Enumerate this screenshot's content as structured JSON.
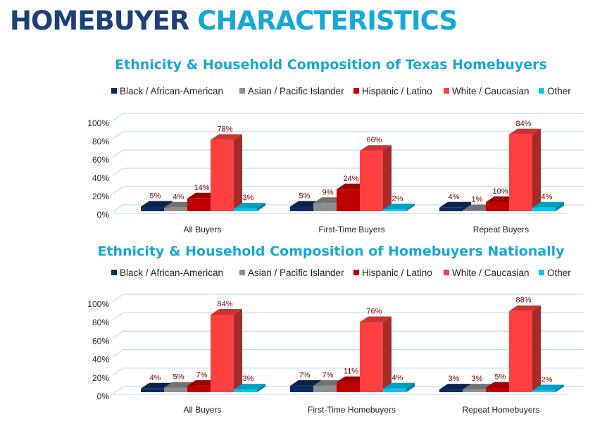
{
  "page_title": {
    "part1": "HOMEBUYER",
    "part2": "CHARACTERISTICS"
  },
  "colors": {
    "title_dark": "#1d3f7a",
    "title_accent": "#17a8d8"
  },
  "chart_data": [
    {
      "type": "bar",
      "title": "Ethnicity & Household Composition of Texas Homebuyers",
      "categories": [
        "All Buyers",
        "First-Time Buyers",
        "Repeat Buyers"
      ],
      "ylim": [
        0,
        100
      ],
      "yticks": [
        "0%",
        "20%",
        "40%",
        "60%",
        "80%",
        "100%"
      ],
      "grid": true,
      "legend": "top",
      "style": "3d-clustered-column",
      "series": [
        {
          "name": "Black / African-American",
          "color": "#0e2a5e",
          "values": [
            5,
            5,
            4
          ]
        },
        {
          "name": "Asian /  Pacific Islander",
          "color": "#8f8f8f",
          "values": [
            4,
            9,
            1
          ]
        },
        {
          "name": "Hispanic / Latino",
          "color": "#c00000",
          "values": [
            14,
            24,
            10
          ]
        },
        {
          "name": "White / Caucasian",
          "color": "#ff4040",
          "values": [
            78,
            66,
            84
          ]
        },
        {
          "name": "Other",
          "color": "#00c8f2",
          "values": [
            3,
            2,
            4
          ]
        }
      ]
    },
    {
      "type": "bar",
      "title": "Ethnicity & Household Composition of Homebuyers Nationally",
      "categories": [
        "All Buyers",
        "First-Time Homebuyers",
        "Repeat Homebuyers"
      ],
      "ylim": [
        0,
        100
      ],
      "yticks": [
        "0%",
        "20%",
        "40%",
        "60%",
        "80%",
        "100%"
      ],
      "grid": true,
      "legend": "top",
      "style": "3d-clustered-column",
      "series": [
        {
          "name": "Black / African-American",
          "color": "#0e2a5e",
          "values": [
            4,
            7,
            3
          ]
        },
        {
          "name": "Asian /  Pacific Islander",
          "color": "#8f8f8f",
          "values": [
            5,
            7,
            3
          ]
        },
        {
          "name": "Hispanic / Latino",
          "color": "#c00000",
          "values": [
            7,
            11,
            5
          ]
        },
        {
          "name": "White / Caucasian",
          "color": "#ff4040",
          "values": [
            84,
            76,
            88
          ]
        },
        {
          "name": "Other",
          "color": "#00c8f2",
          "values": [
            3,
            4,
            2
          ]
        }
      ]
    }
  ]
}
